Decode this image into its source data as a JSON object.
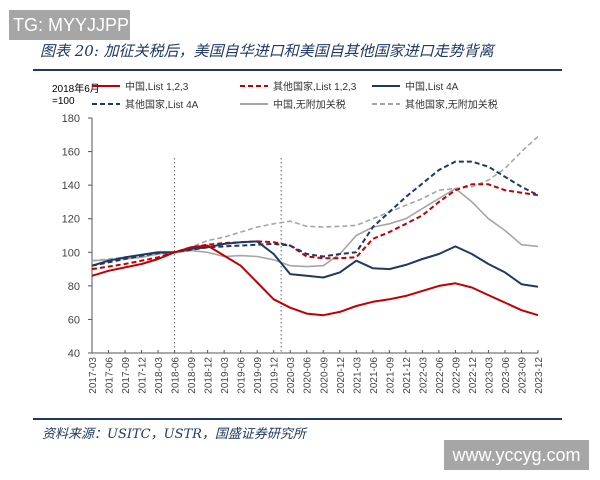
{
  "watermark_top": "TG: MYYJJPP",
  "watermark_bottom": "www.yccyg.com",
  "title": "图表 20:  加征关税后，美国自华进口和美国自其他国家进口走势背离",
  "source": "资料来源：USITC，USTR，国盛证券研究所",
  "chart_data": {
    "type": "line",
    "title": "",
    "ylabel": "2018年6月=100",
    "ylabel_lines": [
      "2018年6月",
      "=100"
    ],
    "ylim": [
      40,
      180
    ],
    "yticks": [
      40,
      60,
      80,
      100,
      120,
      140,
      160,
      180
    ],
    "grid": false,
    "legend": "top",
    "x": [
      "2017-03",
      "2017-06",
      "2017-09",
      "2017-12",
      "2018-03",
      "2018-06",
      "2018-09",
      "2018-12",
      "2019-03",
      "2019-06",
      "2019-09",
      "2019-12",
      "2020-03",
      "2020-06",
      "2020-09",
      "2020-12",
      "2021-03",
      "2021-06",
      "2021-09",
      "2021-12",
      "2022-03",
      "2022-06",
      "2022-09",
      "2022-12",
      "2023-03",
      "2023-06",
      "2023-09",
      "2023-12"
    ],
    "reference_lines": [
      "2018-06",
      "2019-12"
    ],
    "series": [
      {
        "name": "中国,List 1,2,3",
        "color": "#c00000",
        "style": "solid",
        "values": [
          86,
          89,
          91,
          93,
          96,
          100,
          103,
          104,
          98,
          92,
          82,
          72,
          67,
          63.5,
          62.5,
          64.5,
          68,
          70.5,
          72,
          74,
          77,
          80,
          81.5,
          79,
          74.5,
          70,
          65.5,
          62.5
        ]
      },
      {
        "name": "其他国家,List 1,2,3",
        "color": "#c00000",
        "style": "dashed",
        "values": [
          90,
          91.5,
          93,
          95,
          97,
          100,
          103,
          104.5,
          105.5,
          106,
          106.5,
          106,
          104,
          97.5,
          96.5,
          96.5,
          97,
          108,
          112,
          117,
          122,
          130,
          137,
          140.5,
          140.5,
          137,
          135.5,
          134
        ]
      },
      {
        "name": "中国,List 4A",
        "color": "#1f3864",
        "style": "solid",
        "values": [
          92,
          95,
          97,
          98.5,
          100,
          100,
          102,
          103,
          105,
          106,
          106.5,
          99,
          87,
          86,
          85,
          88,
          95,
          90.5,
          90,
          92.5,
          96,
          99,
          103.5,
          99,
          93,
          88,
          81,
          79.5
        ]
      },
      {
        "name": "其他国家,List 4A",
        "color": "#1f3864",
        "style": "dashed",
        "values": [
          92,
          94,
          96,
          98,
          99.5,
          100,
          101.5,
          103,
          103.5,
          104,
          104.5,
          105,
          104,
          99,
          97.5,
          99,
          100,
          115,
          124,
          133,
          141,
          149,
          154,
          154,
          151,
          145,
          139,
          134
        ]
      },
      {
        "name": "中国,无附加关税",
        "color": "#a6a6a6",
        "style": "solid",
        "values": [
          95,
          95.5,
          96,
          97,
          99,
          100,
          101,
          100,
          97.5,
          98,
          97.5,
          95.5,
          92,
          91.5,
          92,
          99,
          110,
          115,
          117,
          120,
          126,
          132,
          138,
          130,
          120,
          113,
          104.5,
          103.5
        ]
      },
      {
        "name": "其他国家,无附加关税",
        "color": "#a6a6a6",
        "style": "dashed",
        "values": [
          95,
          96,
          97,
          98,
          99,
          100,
          103,
          107,
          109,
          112,
          115,
          117,
          118.5,
          115.5,
          115,
          115.5,
          116,
          120,
          124,
          128,
          132,
          137,
          138,
          139,
          143,
          150,
          160,
          169
        ]
      }
    ]
  }
}
